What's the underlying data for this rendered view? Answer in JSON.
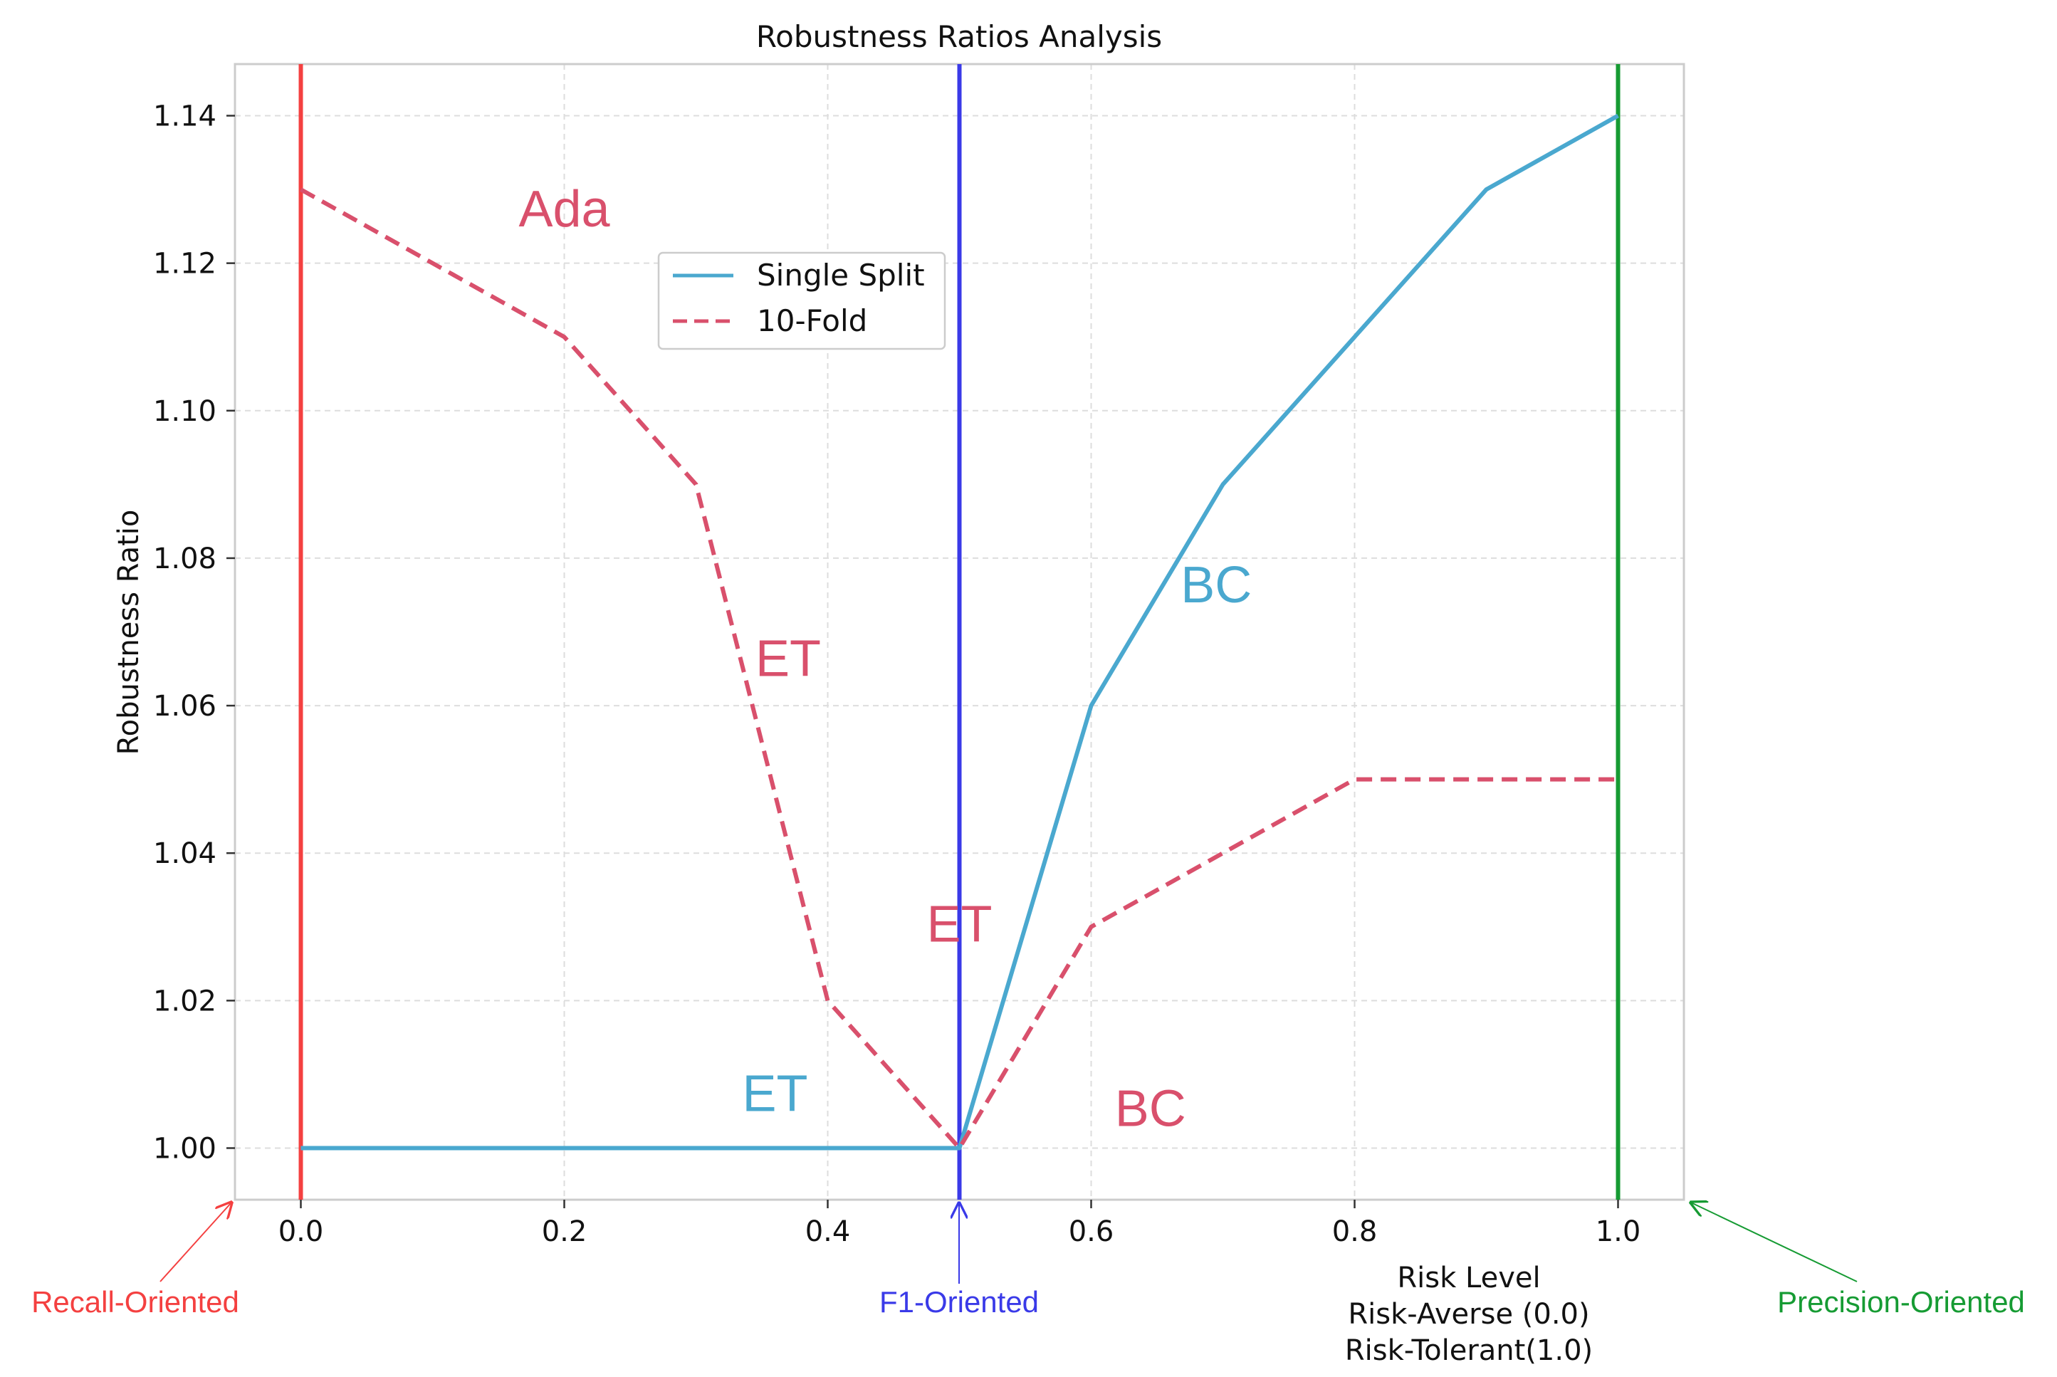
{
  "chart_data": {
    "type": "line",
    "title": "Robustness Ratios Analysis",
    "xlabel_lines": [
      "Risk Level",
      "Risk-Averse (0.0)",
      "Risk-Tolerant(1.0)"
    ],
    "ylabel": "Robustness Ratio",
    "xlim": [
      -0.05,
      1.05
    ],
    "ylim": [
      0.993,
      1.147
    ],
    "x_ticks": [
      0.0,
      0.2,
      0.4,
      0.6,
      0.8,
      1.0
    ],
    "x_tick_labels": [
      "0.0",
      "0.2",
      "0.4",
      "0.6",
      "0.8",
      "1.0"
    ],
    "y_ticks": [
      1.0,
      1.02,
      1.04,
      1.06,
      1.08,
      1.1,
      1.12,
      1.14
    ],
    "y_tick_labels": [
      "1.00",
      "1.02",
      "1.04",
      "1.06",
      "1.08",
      "1.10",
      "1.12",
      "1.14"
    ],
    "grid": true,
    "legend_position": "upper-center",
    "series": [
      {
        "name": "Single Split",
        "style": "solid",
        "color": "#4aa8cf",
        "x": [
          0.0,
          0.1,
          0.2,
          0.3,
          0.4,
          0.5,
          0.6,
          0.7,
          0.8,
          0.9,
          1.0
        ],
        "values": [
          1.0,
          1.0,
          1.0,
          1.0,
          1.0,
          1.0,
          1.06,
          1.09,
          1.11,
          1.13,
          1.14
        ]
      },
      {
        "name": "10-Fold",
        "style": "dashed",
        "color": "#d9506c",
        "x": [
          0.0,
          0.1,
          0.2,
          0.3,
          0.4,
          0.5,
          0.6,
          0.7,
          0.8,
          0.9,
          1.0
        ],
        "values": [
          1.13,
          1.12,
          1.11,
          1.09,
          1.02,
          1.0,
          1.03,
          1.04,
          1.05,
          1.05,
          1.05
        ]
      }
    ],
    "vertical_lines": [
      {
        "x": 0.0,
        "color": "#f44040",
        "label": "Recall-Oriented"
      },
      {
        "x": 0.5,
        "color": "#3a3ae8",
        "label": "F1-Oriented"
      },
      {
        "x": 1.0,
        "color": "#169b33",
        "label": "Precision-Oriented"
      }
    ],
    "annotations": [
      {
        "text": "Ada",
        "x": 0.2,
        "y": 1.125,
        "color": "#d9506c"
      },
      {
        "text": "ET",
        "x": 0.37,
        "y": 1.064,
        "color": "#d9506c"
      },
      {
        "text": "ET",
        "x": 0.5,
        "y": 1.028,
        "color": "#d9506c"
      },
      {
        "text": "ET",
        "x": 0.36,
        "y": 1.005,
        "color": "#4aa8cf"
      },
      {
        "text": "BC",
        "x": 0.695,
        "y": 1.074,
        "color": "#4aa8cf"
      },
      {
        "text": "BC",
        "x": 0.645,
        "y": 1.003,
        "color": "#d9506c"
      }
    ]
  }
}
